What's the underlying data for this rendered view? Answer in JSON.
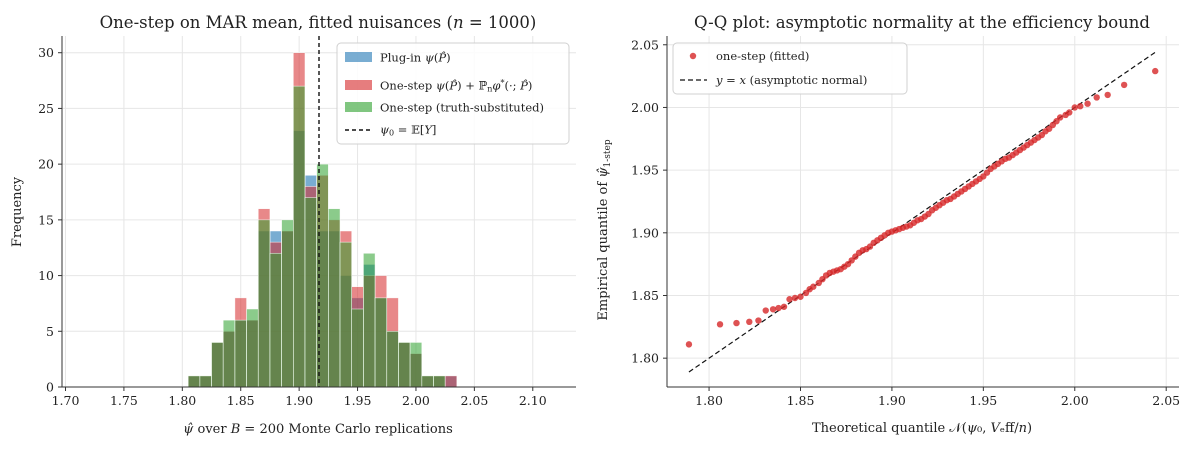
{
  "chart_data": [
    {
      "type": "bar",
      "title": "One-step on MAR mean, fitted nuisances  (n = 1000)",
      "xlabel": "ψ̂ over B = 200 Monte Carlo replications",
      "ylabel": "Frequency",
      "xlim": [
        1.697,
        2.137
      ],
      "ylim": [
        0,
        31.5
      ],
      "x_ticks": [
        "1.70",
        "1.75",
        "1.80",
        "1.85",
        "1.90",
        "1.95",
        "2.00",
        "2.05",
        "2.10"
      ],
      "y_ticks": [
        "0",
        "5",
        "10",
        "15",
        "20",
        "25",
        "30"
      ],
      "grid": true,
      "legend_position": "top-right",
      "bin_width": 0.01,
      "bin_edges_start": 1.805,
      "series": [
        {
          "name": "Plug-in  ψ(P̂)",
          "color": "#1f77b4",
          "values": [
            1,
            1,
            4,
            5,
            6,
            6,
            14,
            14,
            14,
            23,
            19,
            14,
            14,
            10,
            8,
            11,
            8,
            5,
            4,
            3,
            1,
            1,
            1
          ]
        },
        {
          "name": "One-step  ψ(P̂) + ℙₙφ*(·; P̂)",
          "color": "#d62728",
          "values": [
            1,
            1,
            4,
            5,
            8,
            6,
            16,
            13,
            14,
            30,
            18,
            19,
            15,
            14,
            9,
            10,
            10,
            8,
            4,
            3,
            1,
            1,
            1
          ]
        },
        {
          "name": "One-step (truth-substituted)",
          "color": "#2ca02c",
          "values": [
            1,
            1,
            4,
            6,
            6,
            7,
            15,
            12,
            15,
            27,
            17,
            20,
            16,
            13,
            7,
            12,
            8,
            5,
            4,
            4,
            1,
            1,
            0
          ]
        }
      ],
      "reference_line": {
        "label": "ψ₀ = 𝔼[Y]",
        "x": 1.917
      }
    },
    {
      "type": "scatter",
      "title": "Q-Q plot: asymptotic normality at the efficiency bound",
      "xlabel": "Theoretical quantile  𝒩(ψ₀, V_eff/n)",
      "ylabel": "Empirical quantile of ψ̂_1-step",
      "xlim": [
        1.777,
        2.057
      ],
      "ylim": [
        1.777,
        2.057
      ],
      "x_ticks": [
        "1.80",
        "1.85",
        "1.90",
        "1.95",
        "2.00",
        "2.05"
      ],
      "y_ticks": [
        "1.80",
        "1.85",
        "1.90",
        "1.95",
        "2.00",
        "2.05"
      ],
      "grid": true,
      "legend_position": "top-left",
      "series": [
        {
          "name": "one-step (fitted)",
          "color": "#d62728",
          "points": [
            [
              1.789,
              1.811
            ],
            [
              1.806,
              1.827
            ],
            [
              1.815,
              1.828
            ],
            [
              1.822,
              1.829
            ],
            [
              1.827,
              1.83
            ],
            [
              1.831,
              1.838
            ],
            [
              1.835,
              1.839
            ],
            [
              1.838,
              1.84
            ],
            [
              1.841,
              1.841
            ],
            [
              1.844,
              1.847
            ],
            [
              1.847,
              1.848
            ],
            [
              1.85,
              1.849
            ],
            [
              1.853,
              1.852
            ],
            [
              1.855,
              1.855
            ],
            [
              1.857,
              1.857
            ],
            [
              1.86,
              1.86
            ],
            [
              1.862,
              1.863
            ],
            [
              1.864,
              1.866
            ],
            [
              1.866,
              1.868
            ],
            [
              1.868,
              1.869
            ],
            [
              1.87,
              1.87
            ],
            [
              1.872,
              1.871
            ],
            [
              1.874,
              1.873
            ],
            [
              1.876,
              1.875
            ],
            [
              1.878,
              1.878
            ],
            [
              1.88,
              1.881
            ],
            [
              1.882,
              1.884
            ],
            [
              1.884,
              1.886
            ],
            [
              1.886,
              1.887
            ],
            [
              1.888,
              1.889
            ],
            [
              1.89,
              1.892
            ],
            [
              1.892,
              1.894
            ],
            [
              1.894,
              1.896
            ],
            [
              1.896,
              1.898
            ],
            [
              1.898,
              1.9
            ],
            [
              1.9,
              1.901
            ],
            [
              1.902,
              1.902
            ],
            [
              1.904,
              1.903
            ],
            [
              1.906,
              1.904
            ],
            [
              1.908,
              1.905
            ],
            [
              1.91,
              1.906
            ],
            [
              1.912,
              1.908
            ],
            [
              1.914,
              1.91
            ],
            [
              1.916,
              1.911
            ],
            [
              1.918,
              1.913
            ],
            [
              1.92,
              1.915
            ],
            [
              1.922,
              1.918
            ],
            [
              1.924,
              1.92
            ],
            [
              1.926,
              1.922
            ],
            [
              1.928,
              1.924
            ],
            [
              1.93,
              1.926
            ],
            [
              1.932,
              1.927
            ],
            [
              1.934,
              1.929
            ],
            [
              1.936,
              1.931
            ],
            [
              1.938,
              1.933
            ],
            [
              1.94,
              1.935
            ],
            [
              1.942,
              1.937
            ],
            [
              1.944,
              1.939
            ],
            [
              1.946,
              1.941
            ],
            [
              1.948,
              1.943
            ],
            [
              1.95,
              1.945
            ],
            [
              1.952,
              1.948
            ],
            [
              1.954,
              1.951
            ],
            [
              1.956,
              1.953
            ],
            [
              1.958,
              1.955
            ],
            [
              1.96,
              1.957
            ],
            [
              1.962,
              1.959
            ],
            [
              1.964,
              1.96
            ],
            [
              1.966,
              1.962
            ],
            [
              1.968,
              1.964
            ],
            [
              1.97,
              1.966
            ],
            [
              1.972,
              1.968
            ],
            [
              1.974,
              1.97
            ],
            [
              1.976,
              1.972
            ],
            [
              1.978,
              1.974
            ],
            [
              1.98,
              1.976
            ],
            [
              1.982,
              1.978
            ],
            [
              1.984,
              1.981
            ],
            [
              1.986,
              1.983
            ],
            [
              1.988,
              1.986
            ],
            [
              1.99,
              1.989
            ],
            [
              1.992,
              1.992
            ],
            [
              1.995,
              1.994
            ],
            [
              1.997,
              1.996
            ],
            [
              2.0,
              2.0
            ],
            [
              2.003,
              2.001
            ],
            [
              2.007,
              2.003
            ],
            [
              2.012,
              2.008
            ],
            [
              2.018,
              2.01
            ],
            [
              2.027,
              2.018
            ],
            [
              2.044,
              2.029
            ]
          ]
        }
      ],
      "reference_line": {
        "label": "y = x  (asymptotic normal)",
        "from": [
          1.789,
          1.789
        ],
        "to": [
          2.044,
          2.044
        ]
      }
    }
  ]
}
